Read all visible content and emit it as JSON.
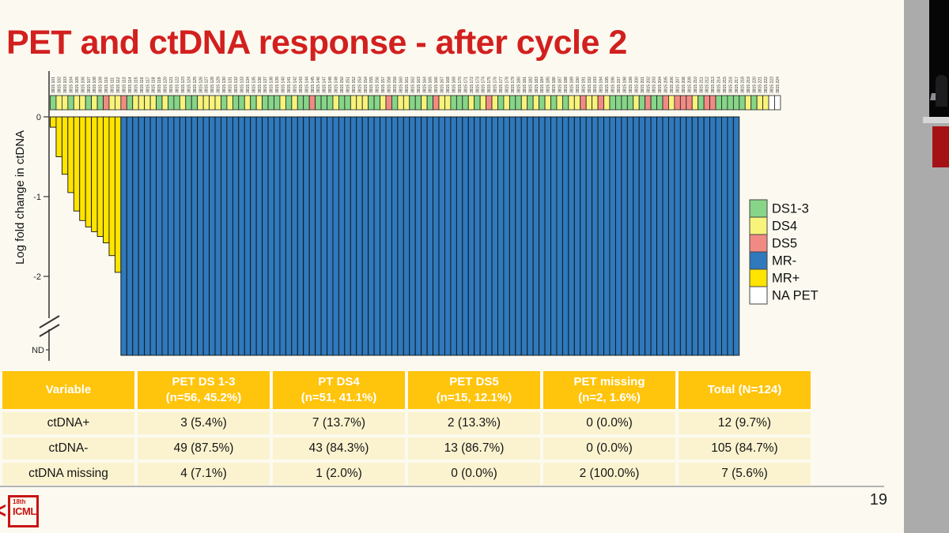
{
  "slide": {
    "title": "PET and ctDNA response - after cycle 2",
    "page_number": "19",
    "logo": {
      "top": "18th",
      "bottom": "ICML"
    }
  },
  "chart_data": {
    "type": "bar",
    "title": "",
    "xlabel": "",
    "ylabel": "Log fold change in ctDNA",
    "yticks": [
      "0",
      "-1",
      "-2"
    ],
    "nd_tick": "ND",
    "ylim": [
      -2.6,
      0
    ],
    "axis_break": true,
    "grid": false,
    "n_patients": 124,
    "patient_id_prefix": "3815",
    "pet_strip": "GYYGYYGYGRYYRGYYYYGYGGYGGYYYYGYGGYGYGGGYGYGGRGGGYGGYYYGGYRGYYGGYGRYYGGGYGYRYGYGGYGYGYGYGYYRYYRYGGGGYGRGGRYRRRYGRRGGGGGYGYYWW",
    "strip_colors": {
      "G": "#86D588",
      "Y": "#F7F37B",
      "R": "#F28A84",
      "W": "#FFFFFF"
    },
    "strip_code_meaning": {
      "G": "DS1-3",
      "Y": "DS4",
      "R": "DS5",
      "W": "NA PET"
    },
    "mr_plus_color": "#FFE400",
    "mr_minus_color": "#2F79BC",
    "mr_plus_values": [
      -0.13,
      -0.5,
      -0.72,
      -0.95,
      -1.18,
      -1.3,
      -1.38,
      -1.44,
      -1.5,
      -1.58,
      -1.74,
      -1.95
    ],
    "mr_minus_count": 105,
    "mr_minus_value": "ND",
    "no_bar_count": 7,
    "legend_position": "right",
    "legend": [
      {
        "label": "DS1-3",
        "color": "#86D588"
      },
      {
        "label": "DS4",
        "color": "#F7F37B"
      },
      {
        "label": "DS5",
        "color": "#F28A84"
      },
      {
        "label": "MR-",
        "color": "#2F79BC"
      },
      {
        "label": "MR+",
        "color": "#FFE400"
      },
      {
        "label": "NA PET",
        "color": "#FFFFFF"
      }
    ]
  },
  "table": {
    "header_bg": "#FFC40C",
    "row_bg": "#FBF3CF",
    "columns": [
      {
        "line1": "Variable",
        "line2": ""
      },
      {
        "line1": "PET DS 1-3",
        "line2": "(n=56, 45.2%)"
      },
      {
        "line1": "PT DS4",
        "line2": "(n=51, 41.1%)"
      },
      {
        "line1": "PET DS5",
        "line2": "(n=15, 12.1%)"
      },
      {
        "line1": "PET missing",
        "line2": "(n=2, 1.6%)"
      },
      {
        "line1": "Total (N=124)",
        "line2": ""
      }
    ],
    "rows": [
      [
        "ctDNA+",
        "3 (5.4%)",
        "7 (13.7%)",
        "2 (13.3%)",
        "0 (0.0%)",
        "12 (9.7%)"
      ],
      [
        "ctDNA-",
        "49 (87.5%)",
        "43 (84.3%)",
        "13 (86.7%)",
        "0 (0.0%)",
        "105 (84.7%)"
      ],
      [
        "ctDNA missing",
        "4 (7.1%)",
        "1 (2.0%)",
        "0 (0.0%)",
        "2 (100.0%)",
        "7 (5.6%)"
      ]
    ]
  }
}
